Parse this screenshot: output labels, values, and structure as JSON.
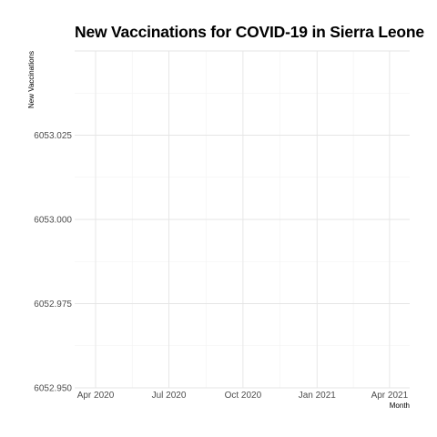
{
  "chart_data": {
    "type": "line",
    "title": "New Vaccinations for COVID-19 in Sierra Leone",
    "xlabel": "Month",
    "ylabel": "New Vaccinations",
    "x_ticks": [
      "Apr 2020",
      "Jul 2020",
      "Oct 2020",
      "Jan 2021",
      "Apr 2021"
    ],
    "xlim": [
      "2020-03-06",
      "2021-04-26"
    ],
    "y_ticks": [
      "6052.950",
      "6052.975",
      "6053.000",
      "6053.025"
    ],
    "ylim": [
      6052.95,
      6053.05
    ],
    "grid": true,
    "legend": "none",
    "series": [
      {
        "x": [],
        "y": []
      }
    ]
  }
}
